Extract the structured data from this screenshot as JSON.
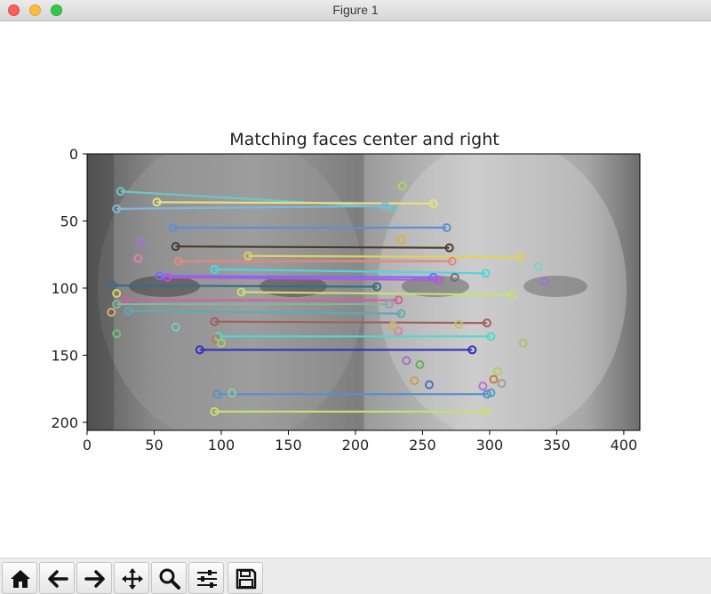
{
  "window": {
    "title": "Figure 1"
  },
  "chart_data": {
    "type": "image",
    "title": "Matching faces center and right",
    "xlim": [
      0,
      412
    ],
    "ylim": [
      206,
      0
    ],
    "xticks": [
      0,
      50,
      100,
      150,
      200,
      250,
      300,
      350,
      400
    ],
    "yticks": [
      0,
      50,
      100,
      150,
      200
    ],
    "image_split_x": 206,
    "matches": [
      {
        "x1": 25,
        "y1": 28,
        "x2": 228,
        "y2": 40,
        "color": "#6cc7c7"
      },
      {
        "x1": 52,
        "y1": 36,
        "x2": 258,
        "y2": 37,
        "color": "#e8e080"
      },
      {
        "x1": 22,
        "y1": 41,
        "x2": 222,
        "y2": 39,
        "color": "#7fb8d8"
      },
      {
        "x1": 64,
        "y1": 55,
        "x2": 268,
        "y2": 55,
        "color": "#5c8fd6"
      },
      {
        "x1": 66,
        "y1": 69,
        "x2": 270,
        "y2": 70,
        "color": "#4a3a2a"
      },
      {
        "x1": 120,
        "y1": 76,
        "x2": 323,
        "y2": 77,
        "color": "#e2d060"
      },
      {
        "x1": 68,
        "y1": 80,
        "x2": 272,
        "y2": 80,
        "color": "#e08a80"
      },
      {
        "x1": 95,
        "y1": 86,
        "x2": 297,
        "y2": 89,
        "color": "#52d4e0"
      },
      {
        "x1": 54,
        "y1": 91,
        "x2": 258,
        "y2": 92,
        "color": "#7070ff"
      },
      {
        "x1": 60,
        "y1": 92,
        "x2": 262,
        "y2": 94,
        "color": "#c050e0"
      },
      {
        "x1": 19,
        "y1": 98,
        "x2": 216,
        "y2": 99,
        "color": "#3a6a8a"
      },
      {
        "x1": 115,
        "y1": 103,
        "x2": 317,
        "y2": 105,
        "color": "#c8e070"
      },
      {
        "x1": 28,
        "y1": 109,
        "x2": 232,
        "y2": 109,
        "color": "#d060a0"
      },
      {
        "x1": 22,
        "y1": 112,
        "x2": 225,
        "y2": 112,
        "color": "#80b8a0"
      },
      {
        "x1": 31,
        "y1": 117,
        "x2": 234,
        "y2": 119,
        "color": "#60a8b8"
      },
      {
        "x1": 95,
        "y1": 125,
        "x2": 298,
        "y2": 126,
        "color": "#a06060"
      },
      {
        "x1": 98,
        "y1": 136,
        "x2": 301,
        "y2": 136,
        "color": "#50d8d0"
      },
      {
        "x1": 84,
        "y1": 146,
        "x2": 287,
        "y2": 146,
        "color": "#3030c0"
      },
      {
        "x1": 97,
        "y1": 179,
        "x2": 298,
        "y2": 179,
        "color": "#5a90c8"
      },
      {
        "x1": 95,
        "y1": 192,
        "x2": 297,
        "y2": 192,
        "color": "#c8e070"
      }
    ],
    "keypoints": [
      {
        "x": 235,
        "y": 24,
        "color": "#a8d860"
      },
      {
        "x": 40,
        "y": 66,
        "color": "#b070e0"
      },
      {
        "x": 234,
        "y": 64,
        "color": "#d8b040"
      },
      {
        "x": 38,
        "y": 78,
        "color": "#e080b0"
      },
      {
        "x": 22,
        "y": 104,
        "color": "#e0d060"
      },
      {
        "x": 18,
        "y": 118,
        "color": "#e0b070"
      },
      {
        "x": 22,
        "y": 134,
        "color": "#70c070"
      },
      {
        "x": 66,
        "y": 129,
        "color": "#80c8c0"
      },
      {
        "x": 96,
        "y": 138,
        "color": "#d07040"
      },
      {
        "x": 100,
        "y": 141,
        "color": "#a0d070"
      },
      {
        "x": 108,
        "y": 178,
        "color": "#90c8a0"
      },
      {
        "x": 232,
        "y": 132,
        "color": "#e080a0"
      },
      {
        "x": 228,
        "y": 128,
        "color": "#d0b060"
      },
      {
        "x": 238,
        "y": 154,
        "color": "#a070c0"
      },
      {
        "x": 248,
        "y": 157,
        "color": "#60b060"
      },
      {
        "x": 244,
        "y": 169,
        "color": "#d0a050"
      },
      {
        "x": 277,
        "y": 127,
        "color": "#c0c060"
      },
      {
        "x": 306,
        "y": 162,
        "color": "#b0d060"
      },
      {
        "x": 303,
        "y": 168,
        "color": "#c08040"
      },
      {
        "x": 295,
        "y": 173,
        "color": "#c070d0"
      },
      {
        "x": 309,
        "y": 171,
        "color": "#a0a0a0"
      },
      {
        "x": 325,
        "y": 141,
        "color": "#b0c070"
      },
      {
        "x": 336,
        "y": 84,
        "color": "#80d0d0"
      },
      {
        "x": 341,
        "y": 95,
        "color": "#a070e0"
      },
      {
        "x": 225,
        "y": 112,
        "color": "#90a0b0"
      },
      {
        "x": 274,
        "y": 92,
        "color": "#707070"
      },
      {
        "x": 255,
        "y": 172,
        "color": "#5070c0"
      },
      {
        "x": 301,
        "y": 178,
        "color": "#50a0c0"
      }
    ]
  },
  "toolbar": {
    "buttons": [
      {
        "name": "home-button",
        "icon": "home-icon"
      },
      {
        "name": "back-button",
        "icon": "arrow-left-icon"
      },
      {
        "name": "forward-button",
        "icon": "arrow-right-icon"
      },
      {
        "name": "pan-button",
        "icon": "move-icon"
      },
      {
        "name": "zoom-button",
        "icon": "zoom-icon"
      },
      {
        "name": "subplots-button",
        "icon": "sliders-icon"
      },
      {
        "name": "save-button",
        "icon": "save-icon"
      }
    ]
  }
}
